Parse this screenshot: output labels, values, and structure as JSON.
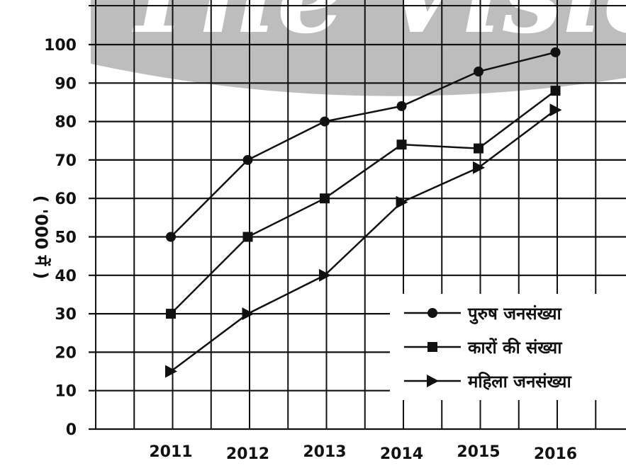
{
  "watermark": "The Vision",
  "chart_data": {
    "type": "line",
    "title": "",
    "xlabel": "",
    "ylabel": "( '000 में )",
    "categories": [
      "2011",
      "2012",
      "2013",
      "2014",
      "2015",
      "2016"
    ],
    "ylim": [
      0,
      100
    ],
    "yticks": [
      0,
      10,
      20,
      30,
      40,
      50,
      60,
      70,
      80,
      90,
      100
    ],
    "grid": true,
    "legend_position": "bottom-right",
    "series": [
      {
        "name": "पुरुष जनसंख्या",
        "marker": "circle",
        "values": [
          50,
          70,
          80,
          84,
          93,
          98
        ]
      },
      {
        "name": "कारों की संख्या",
        "marker": "square",
        "values": [
          30,
          50,
          60,
          74,
          73,
          88
        ]
      },
      {
        "name": "महिला जनसंख्या",
        "marker": "triangle-right",
        "values": [
          15,
          30,
          40,
          59,
          68,
          83
        ]
      }
    ],
    "colors": {
      "line": "#111111",
      "grid": "#111111",
      "background": "#ffffff",
      "watermark_band": "#bdbdbd"
    }
  }
}
